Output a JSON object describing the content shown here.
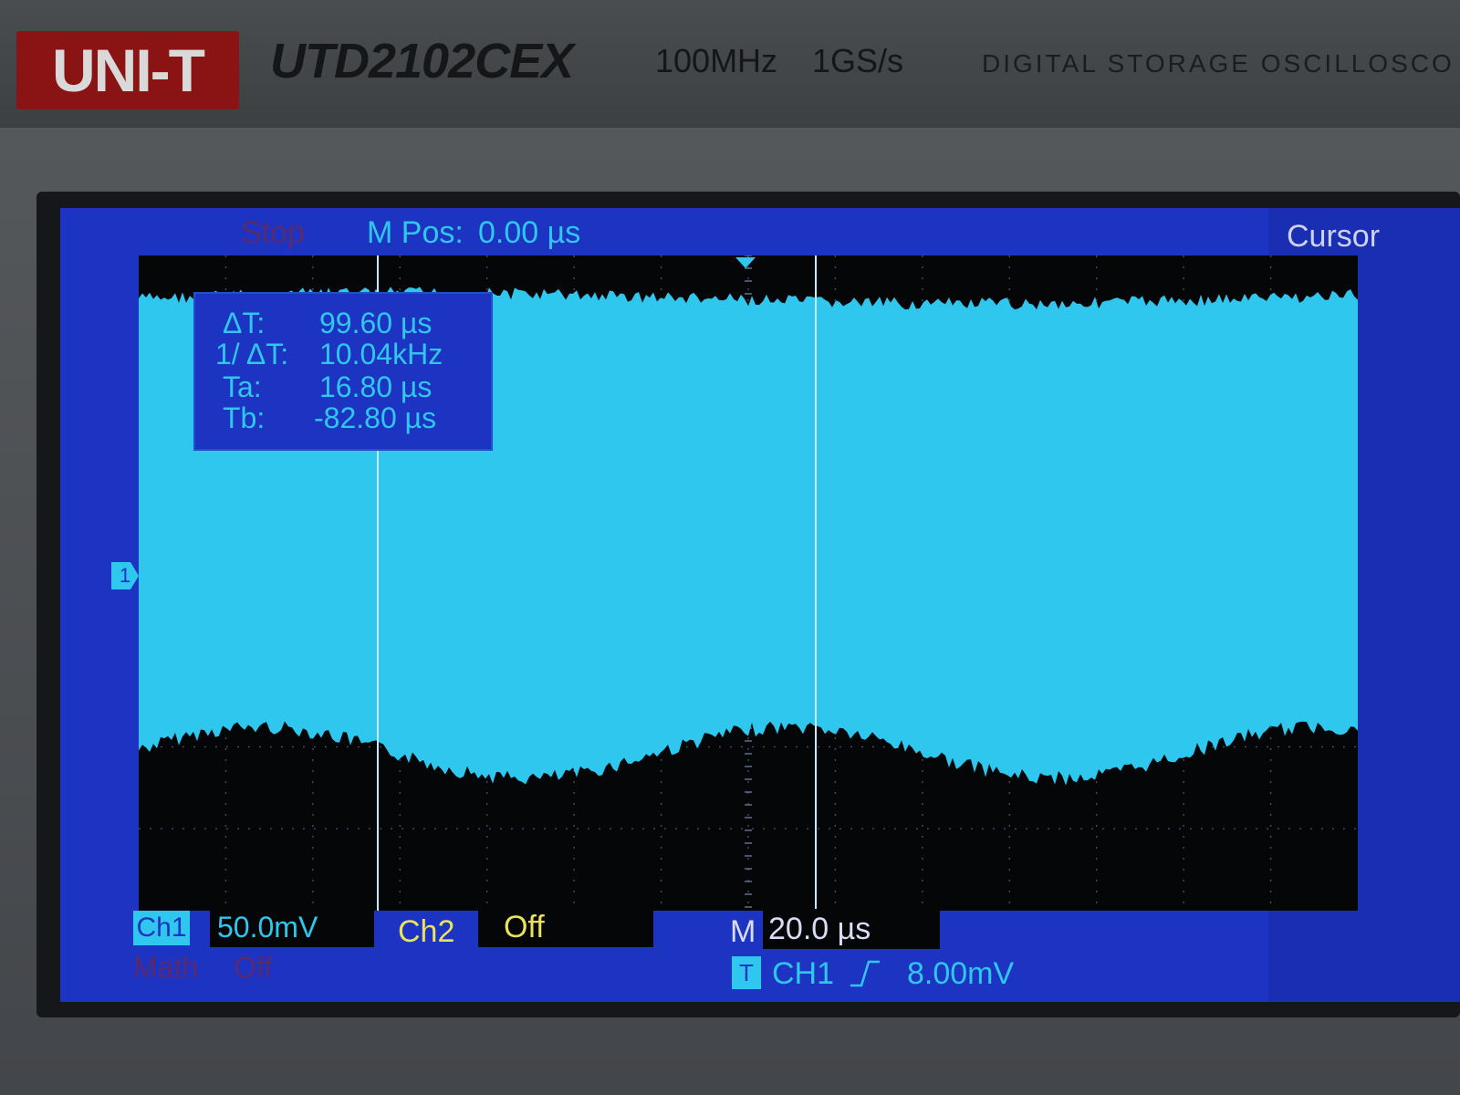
{
  "header": {
    "brand": "UNI-T",
    "model": "UTD2102CEX",
    "bandwidth": "100MHz",
    "sample_rate": "1GS/s",
    "descriptor": "DIGITAL STORAGE OSCILLOSCO"
  },
  "screen": {
    "run_status": "Stop",
    "mpos_label": "M Pos:",
    "mpos_value": "0.00 µs",
    "menu_title": "Cursor",
    "ch1_ground_marker": "1",
    "cursor_readout": {
      "delta_t_label": "ΔT:",
      "delta_t_value": "99.60 µs",
      "inv_delta_t_label": "1/ ΔT:",
      "inv_delta_t_value": "10.04kHz",
      "ta_label": "Ta:",
      "ta_value": "16.80 µs",
      "tb_label": "Tb:",
      "tb_value": "-82.80 µs"
    },
    "status_bar": {
      "ch1_label": "Ch1",
      "ch1_scale": "50.0mV",
      "ch2_label": "Ch2",
      "ch2_scale": "Off",
      "math_label": "Math",
      "math_state": "Off",
      "timebase_label": "M",
      "timebase_value": "20.0 µs",
      "trigger_badge": "T",
      "trigger_source": "CH1",
      "trigger_level": "8.00mV"
    }
  },
  "colors": {
    "lcd_background": "#1d33c2",
    "ch1_trace": "#2fc7ee",
    "ch2_trace": "#e9e25a",
    "graticule_background": "#050608"
  },
  "icons": {
    "trigger_edge": "rising-edge-icon"
  }
}
